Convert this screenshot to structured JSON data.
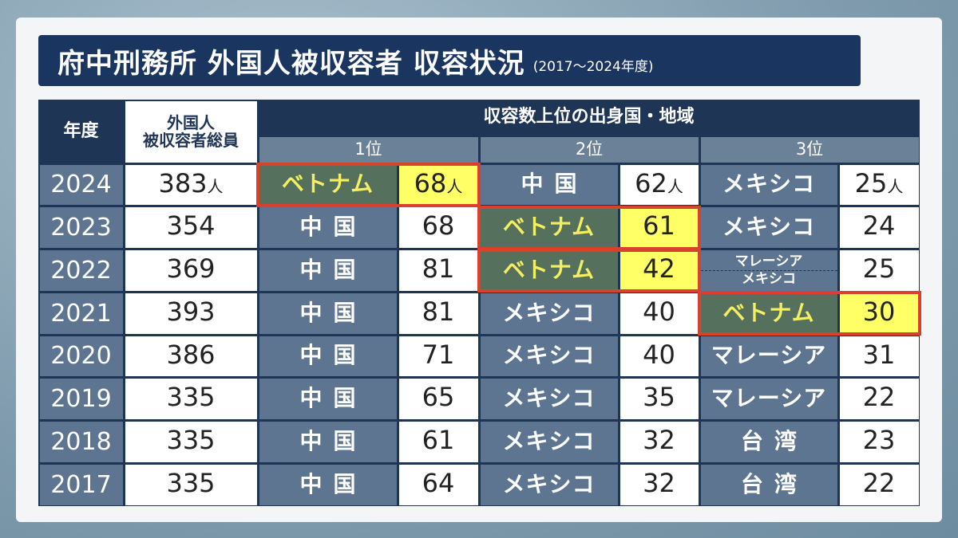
{
  "title": "府中刑務所 外国人被収容者 収容状況",
  "subtitle": "(2017～2024年度)",
  "table": {
    "header": {
      "year": "年度",
      "total": [
        "外国人",
        "被収容者総員"
      ],
      "group": "収容数上位の出身国・地域",
      "ranks": [
        "1位",
        "2位",
        "3位"
      ]
    },
    "unit": "人",
    "rows": [
      {
        "year": 2024,
        "total": 383,
        "ranks": [
          {
            "country": "ベトナム",
            "count": 68,
            "highlight": true
          },
          {
            "country": "中国",
            "count": 62
          },
          {
            "country": "メキシコ",
            "count": 25
          }
        ]
      },
      {
        "year": 2023,
        "total": 354,
        "ranks": [
          {
            "country": "中国",
            "count": 68
          },
          {
            "country": "ベトナム",
            "count": 61,
            "highlight": true
          },
          {
            "country": "メキシコ",
            "count": 24
          }
        ]
      },
      {
        "year": 2022,
        "total": 369,
        "ranks": [
          {
            "country": "中国",
            "count": 81
          },
          {
            "country": "ベトナム",
            "count": 42,
            "highlight": true
          },
          {
            "country": [
              "マレーシア",
              "メキシコ"
            ],
            "count": 25
          }
        ]
      },
      {
        "year": 2021,
        "total": 393,
        "ranks": [
          {
            "country": "中国",
            "count": 81
          },
          {
            "country": "メキシコ",
            "count": 40
          },
          {
            "country": "ベトナム",
            "count": 30,
            "highlight": true
          }
        ]
      },
      {
        "year": 2020,
        "total": 386,
        "ranks": [
          {
            "country": "中国",
            "count": 71
          },
          {
            "country": "メキシコ",
            "count": 40
          },
          {
            "country": "マレーシア",
            "count": 31
          }
        ]
      },
      {
        "year": 2019,
        "total": 335,
        "ranks": [
          {
            "country": "中国",
            "count": 65
          },
          {
            "country": "メキシコ",
            "count": 35
          },
          {
            "country": "マレーシア",
            "count": 22
          }
        ]
      },
      {
        "year": 2018,
        "total": 335,
        "ranks": [
          {
            "country": "中国",
            "count": 61
          },
          {
            "country": "メキシコ",
            "count": 32
          },
          {
            "country": "台湾",
            "count": 23
          }
        ]
      },
      {
        "year": 2017,
        "total": 335,
        "ranks": [
          {
            "country": "中国",
            "count": 64
          },
          {
            "country": "メキシコ",
            "count": 32
          },
          {
            "country": "台湾",
            "count": 22
          }
        ]
      }
    ]
  }
}
